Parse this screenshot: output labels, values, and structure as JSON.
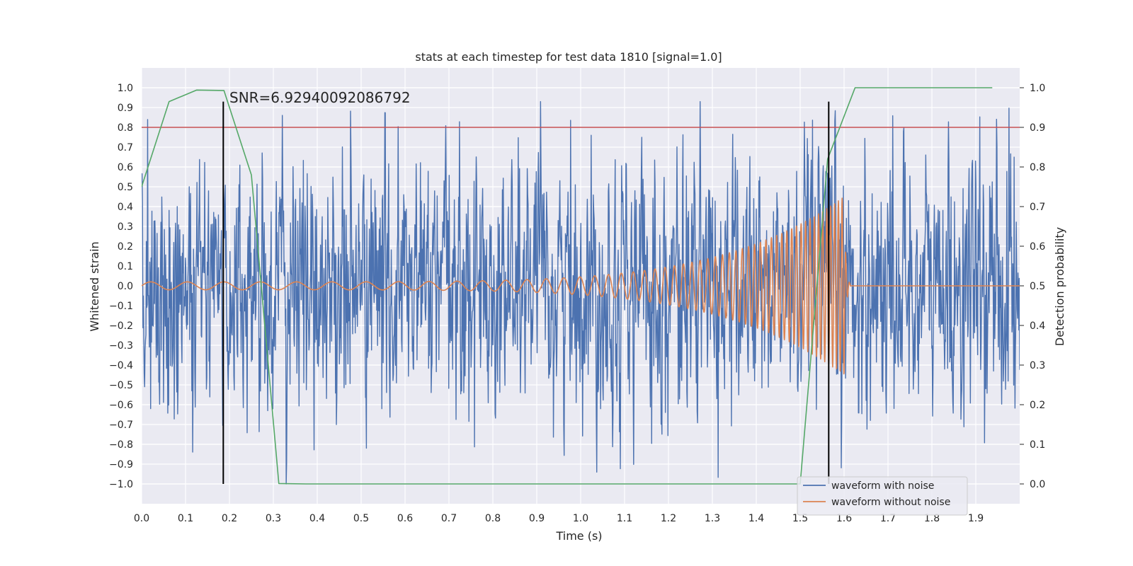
{
  "chart_data": {
    "type": "line",
    "title": "stats at each timestep for test data 1810 [signal=1.0]",
    "xlabel": "Time (s)",
    "ylabel": "Whitened strain",
    "y2label": "Detection probability",
    "xlim": [
      0.0,
      2.0
    ],
    "ylim": [
      -1.1,
      1.1
    ],
    "y2lim": [
      -0.05,
      1.05
    ],
    "x_ticks": [
      0.0,
      0.1,
      0.2,
      0.3,
      0.4,
      0.5,
      0.6,
      0.7,
      0.8,
      0.9,
      1.0,
      1.1,
      1.2,
      1.3,
      1.4,
      1.5,
      1.6,
      1.7,
      1.8,
      1.9
    ],
    "x_tick_labels": [
      "0.0",
      "0.1",
      "0.2",
      "0.3",
      "0.4",
      "0.5",
      "0.6",
      "0.7",
      "0.8",
      "0.9",
      "1.0",
      "1.1",
      "1.2",
      "1.3",
      "1.4",
      "1.5",
      "1.6",
      "1.7",
      "1.8",
      "1.9"
    ],
    "y_ticks": [
      1.0,
      0.9,
      0.8,
      0.7,
      0.6,
      0.5,
      0.4,
      0.3,
      0.2,
      0.1,
      0.0,
      -0.1,
      -0.2,
      -0.3,
      -0.4,
      -0.5,
      -0.6,
      -0.7,
      -0.8,
      -0.9,
      -1.0
    ],
    "y_tick_labels": [
      "1.0",
      "0.9",
      "0.8",
      "0.7",
      "0.6",
      "0.5",
      "0.4",
      "0.3",
      "0.2",
      "0.1",
      "0.0",
      "−0.1",
      "−0.2",
      "−0.3",
      "−0.4",
      "−0.5",
      "−0.6",
      "−0.7",
      "−0.8",
      "−0.9",
      "−1.0"
    ],
    "y2_ticks": [
      1.0,
      0.9,
      0.8,
      0.7,
      0.6,
      0.5,
      0.4,
      0.3,
      0.2,
      0.1,
      0.0
    ],
    "y2_tick_labels": [
      "1.0",
      "0.9",
      "0.8",
      "0.7",
      "0.6",
      "0.5",
      "0.4",
      "0.3",
      "0.2",
      "0.1",
      "0.0"
    ],
    "grid": true,
    "legend_position": "lower-right",
    "annotation": "SNR=6.92940092086792",
    "annotation_at": [
      0.2,
      0.95
    ],
    "threshold_y2": 0.9,
    "markers_x": [
      0.186,
      1.565
    ],
    "marker_y_range": [
      -1.0,
      0.93
    ],
    "colors": {
      "noisy": "#4c72b0",
      "clean": "#dd8452",
      "probability": "#55a868",
      "threshold": "#c44e52",
      "marker": "#000000",
      "plot_bg": "#eaeaf2",
      "grid": "#ffffff"
    },
    "series": [
      {
        "name": "waveform with noise",
        "axis": "left",
        "x_range": [
          0.0,
          2.0
        ],
        "noise_std": 0.3,
        "y_min": -1.0,
        "y_max": 0.93,
        "n_points": 2048
      },
      {
        "name": "waveform without noise",
        "axis": "left",
        "x_range": [
          0.0,
          2.0
        ],
        "chirp_f_start_hz": 12,
        "chirp_f_end_hz": 120,
        "amp_start": 0.02,
        "amp_peak": 0.45,
        "merger_time": 1.6,
        "ringdown_end": 1.615
      },
      {
        "name": "detection probability",
        "axis": "right",
        "x": [
          0.0,
          0.0625,
          0.125,
          0.1875,
          0.25,
          0.3125,
          0.375,
          0.4375,
          0.5,
          0.5625,
          0.625,
          0.6875,
          0.75,
          0.8125,
          0.875,
          0.9375,
          1.0,
          1.0625,
          1.125,
          1.1875,
          1.25,
          1.3125,
          1.375,
          1.4375,
          1.5,
          1.5625,
          1.625,
          1.6875,
          1.75,
          1.8125,
          1.875,
          1.9375
        ],
        "y": [
          0.75,
          0.965,
          0.994,
          0.993,
          0.78,
          0.001,
          0.0,
          0.0,
          0.0,
          0.0,
          0.0,
          0.0,
          0.0,
          0.0,
          0.0,
          0.0,
          0.0,
          0.0,
          0.0,
          0.0,
          0.0,
          0.0,
          0.0,
          0.0,
          0.0,
          0.82,
          1.0,
          1.0,
          1.0,
          1.0,
          1.0,
          1.0
        ]
      }
    ]
  }
}
